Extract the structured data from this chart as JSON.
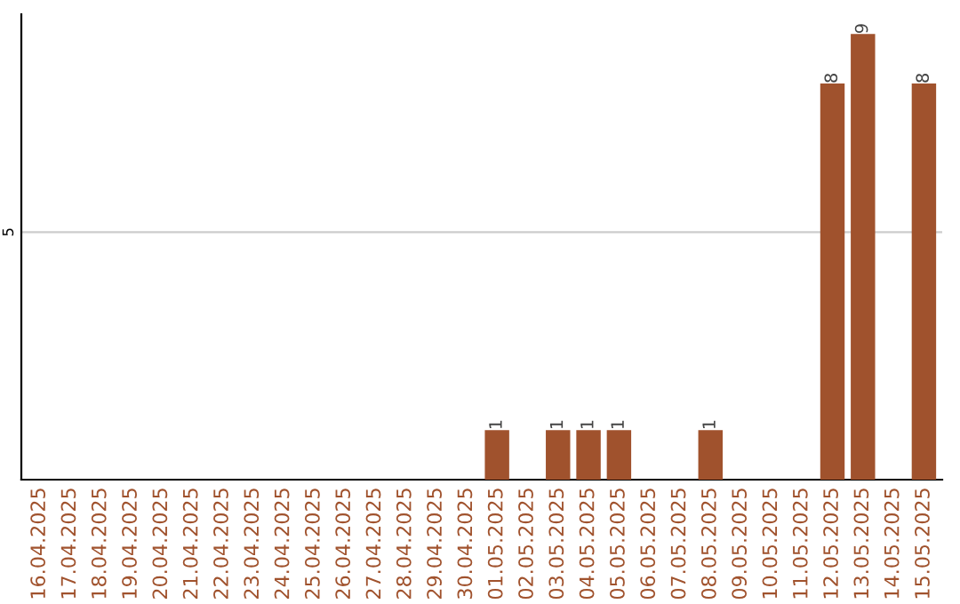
{
  "chart_data": {
    "type": "bar",
    "categories": [
      "16.04.2025",
      "17.04.2025",
      "18.04.2025",
      "19.04.2025",
      "20.04.2025",
      "21.04.2025",
      "22.04.2025",
      "23.04.2025",
      "24.04.2025",
      "25.04.2025",
      "26.04.2025",
      "27.04.2025",
      "28.04.2025",
      "29.04.2025",
      "30.04.2025",
      "01.05.2025",
      "02.05.2025",
      "03.05.2025",
      "04.05.2025",
      "05.05.2025",
      "06.05.2025",
      "07.05.2025",
      "08.05.2025",
      "09.05.2025",
      "10.05.2025",
      "11.05.2025",
      "12.05.2025",
      "13.05.2025",
      "14.05.2025",
      "15.05.2025"
    ],
    "values": [
      null,
      null,
      null,
      null,
      null,
      null,
      null,
      null,
      null,
      null,
      null,
      null,
      null,
      null,
      null,
      1,
      null,
      1,
      1,
      1,
      null,
      null,
      1,
      null,
      null,
      null,
      8,
      9,
      null,
      8
    ],
    "value_labels": [
      null,
      null,
      null,
      null,
      null,
      null,
      null,
      null,
      null,
      null,
      null,
      null,
      null,
      null,
      null,
      "1",
      null,
      "1",
      "1",
      "1",
      null,
      null,
      "1",
      null,
      null,
      null,
      "8",
      "9",
      null,
      "8"
    ],
    "color": "#a0522d",
    "ylim": [
      0,
      9.4
    ],
    "yticks": [
      5
    ],
    "grid": "y",
    "legend": false
  }
}
